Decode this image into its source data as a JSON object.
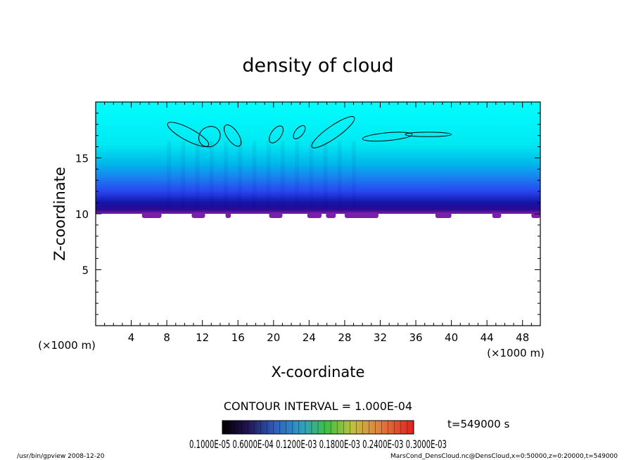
{
  "chart_data": {
    "type": "heatmap",
    "title": "density of cloud",
    "xlabel": "X-coordinate",
    "ylabel": "Z-coordinate",
    "x_unit": "(×1000 m)",
    "y_unit": "(×1000 m)",
    "xlim": [
      0,
      50
    ],
    "ylim": [
      0,
      20
    ],
    "x_ticks": [
      4,
      8,
      12,
      16,
      20,
      24,
      28,
      32,
      36,
      40,
      44,
      48
    ],
    "y_ticks": [
      5,
      10,
      15
    ],
    "contour_label": "CONTOUR INTERVAL = 1.000E-04",
    "colorbar_labels": "0.1000E-05 0.6000E-04 0.1200E-03 0.1800E-03 0.2400E-03 0.3000E-03",
    "cloud_base_z": 10,
    "cloud_top_z": 20,
    "colors": {
      "top": "#00ffff",
      "mid": "#3a6bff",
      "dense": "#1010a0",
      "base": "#7a1fa8"
    }
  },
  "time_label": "t=549000 s",
  "footer": {
    "left": "/usr/bin/gpview   2008-12-20",
    "right": "MarsCond_DensCloud.nc@DensCloud,x=0:50000,z=0:20000,t=549000"
  }
}
